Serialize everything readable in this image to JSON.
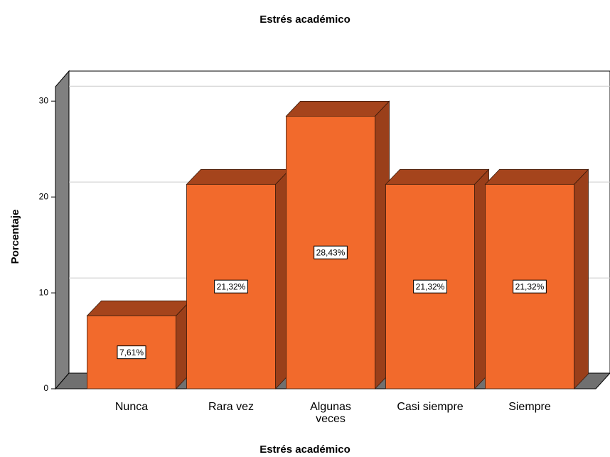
{
  "chart_data": {
    "type": "bar3d",
    "title": "Estrés académico",
    "x_label": "Estrés académico",
    "y_label": "Porcentaje",
    "categories": [
      "Nunca",
      "Rara vez",
      "Algunas veces",
      "Casi siempre",
      "Siempre"
    ],
    "values": [
      7.61,
      21.32,
      28.43,
      21.32,
      21.32
    ],
    "value_labels": [
      "7,61%",
      "21,32%",
      "28,43%",
      "21,32%",
      "21,32%"
    ],
    "color": "#f26a2c",
    "ylim": [
      0,
      31.5
    ],
    "yticks": [
      0,
      10,
      20,
      30
    ],
    "grid": true
  }
}
